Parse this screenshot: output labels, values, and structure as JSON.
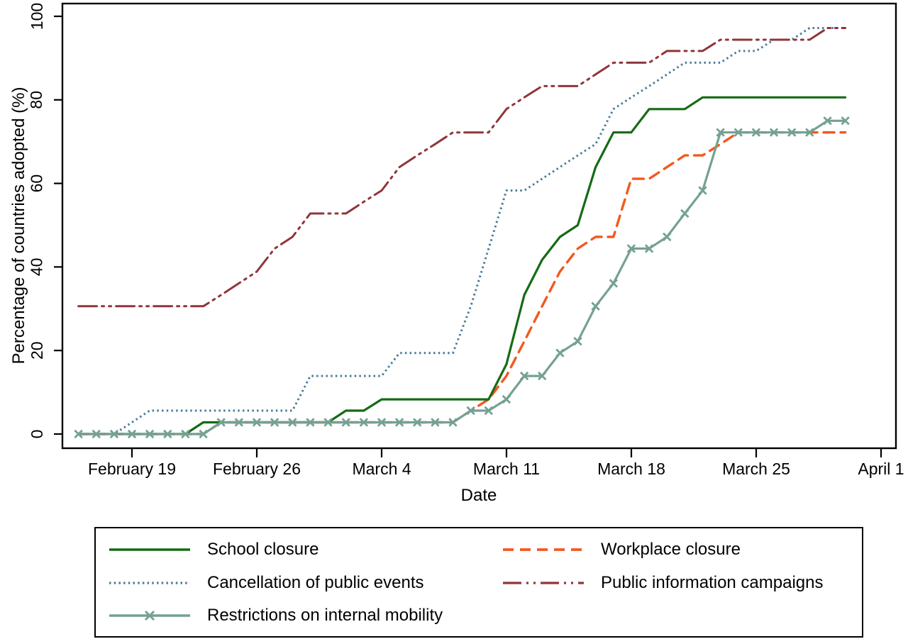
{
  "figure": {
    "ylabel": "Percentage of countries adopted (%)",
    "xlabel": "Date",
    "yticks": [
      "0",
      "20",
      "40",
      "60",
      "80",
      "100"
    ],
    "xticks": [
      "February 19",
      "February 26",
      "March 4",
      "March 11",
      "March 18",
      "March 25",
      "April 1"
    ]
  },
  "chart_data": {
    "type": "line",
    "title": "",
    "xlabel": "Date",
    "ylabel": "Percentage of countries adopted (%)",
    "ylim": [
      0,
      100
    ],
    "grid": false,
    "legend_position": "bottom",
    "x": [
      "Feb 16",
      "Feb 17",
      "Feb 18",
      "Feb 19",
      "Feb 20",
      "Feb 21",
      "Feb 22",
      "Feb 23",
      "Feb 24",
      "Feb 25",
      "Feb 26",
      "Feb 27",
      "Feb 28",
      "Feb 29",
      "Mar 1",
      "Mar 2",
      "Mar 3",
      "Mar 4",
      "Mar 5",
      "Mar 6",
      "Mar 7",
      "Mar 8",
      "Mar 9",
      "Mar 10",
      "Mar 11",
      "Mar 12",
      "Mar 13",
      "Mar 14",
      "Mar 15",
      "Mar 16",
      "Mar 17",
      "Mar 18",
      "Mar 19",
      "Mar 20",
      "Mar 21",
      "Mar 22",
      "Mar 23",
      "Mar 24",
      "Mar 25",
      "Mar 26",
      "Mar 27",
      "Mar 28",
      "Mar 29",
      "Mar 30"
    ],
    "xtick_labels": [
      "February 19",
      "February 26",
      "March 4",
      "March 11",
      "March 18",
      "March 25",
      "April 1"
    ],
    "ytick_values": [
      0,
      20,
      40,
      60,
      80,
      100
    ],
    "series": [
      {
        "name": "School closure",
        "color": "#156b15",
        "style": "solid",
        "marker": null,
        "values": [
          0,
          0,
          0,
          0,
          0,
          0,
          0,
          2.8,
          2.8,
          2.8,
          2.8,
          2.8,
          2.8,
          2.8,
          2.8,
          5.6,
          5.6,
          8.3,
          8.3,
          8.3,
          8.3,
          8.3,
          8.3,
          8.3,
          16.7,
          33.3,
          41.7,
          47.2,
          50,
          63.9,
          72.2,
          72.2,
          77.8,
          77.8,
          77.8,
          80.6,
          80.6,
          80.6,
          80.6,
          80.6,
          80.6,
          80.6,
          80.6,
          80.6
        ]
      },
      {
        "name": "Cancellation of public events",
        "color": "#4a7c99",
        "style": "dotted",
        "marker": null,
        "values": [
          0,
          0,
          0,
          2.8,
          5.6,
          5.6,
          5.6,
          5.6,
          5.6,
          5.6,
          5.6,
          5.6,
          5.6,
          13.9,
          13.9,
          13.9,
          13.9,
          13.9,
          19.4,
          19.4,
          19.4,
          19.4,
          30.6,
          44.4,
          58.3,
          58.3,
          61.1,
          63.9,
          66.7,
          69.4,
          77.8,
          80.6,
          83.3,
          86.1,
          88.9,
          88.9,
          88.9,
          91.7,
          91.7,
          94.4,
          94.4,
          97.2,
          97.2,
          97.2
        ]
      },
      {
        "name": "Restrictions on internal mobility",
        "color": "#74a193",
        "style": "solid",
        "marker": "x",
        "values": [
          0,
          0,
          0,
          0,
          0,
          0,
          0,
          0,
          2.8,
          2.8,
          2.8,
          2.8,
          2.8,
          2.8,
          2.8,
          2.8,
          2.8,
          2.8,
          2.8,
          2.8,
          2.8,
          2.8,
          5.6,
          5.6,
          8.3,
          13.9,
          13.9,
          19.4,
          22.2,
          30.6,
          36.1,
          44.4,
          44.4,
          47.2,
          52.8,
          58.3,
          72.2,
          72.2,
          72.2,
          72.2,
          72.2,
          72.2,
          75,
          75
        ]
      },
      {
        "name": "Workplace closure",
        "color": "#f4581e",
        "style": "dashed",
        "marker": null,
        "values": [
          0,
          0,
          0,
          0,
          0,
          0,
          0,
          0,
          2.8,
          2.8,
          2.8,
          2.8,
          2.8,
          2.8,
          2.8,
          2.8,
          2.8,
          2.8,
          2.8,
          2.8,
          2.8,
          2.8,
          5.6,
          8.3,
          13.9,
          22.2,
          30.6,
          38.9,
          44.4,
          47.2,
          47.2,
          61.1,
          61.1,
          63.9,
          66.7,
          66.7,
          69.4,
          72.2,
          72.2,
          72.2,
          72.2,
          72.2,
          72.2,
          72.2
        ]
      },
      {
        "name": "Public information campaigns",
        "color": "#90353b",
        "style": "dash-dot-dot",
        "marker": null,
        "values": [
          30.6,
          30.6,
          30.6,
          30.6,
          30.6,
          30.6,
          30.6,
          30.6,
          33.3,
          36.1,
          38.9,
          44.4,
          47.2,
          52.8,
          52.8,
          52.8,
          55.6,
          58.3,
          63.9,
          66.7,
          69.4,
          72.2,
          72.2,
          72.2,
          77.8,
          80.6,
          83.3,
          83.3,
          83.3,
          86.1,
          88.9,
          88.9,
          88.9,
          91.7,
          91.7,
          91.7,
          94.4,
          94.4,
          94.4,
          94.4,
          94.4,
          94.4,
          97.2,
          97.2
        ]
      }
    ]
  },
  "legend": {
    "column1": [
      "School closure",
      "Cancellation of public events",
      "Restrictions on internal mobility"
    ],
    "column2": [
      "Workplace closure",
      "Public information campaigns"
    ]
  }
}
